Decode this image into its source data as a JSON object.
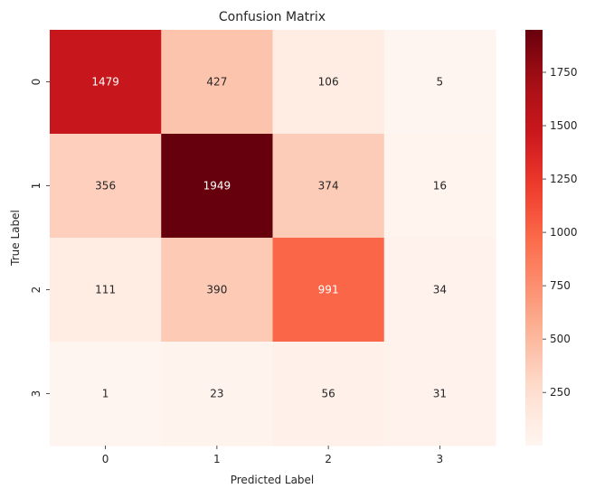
{
  "chart_data": {
    "type": "heatmap",
    "title": "Confusion Matrix",
    "xlabel": "Predicted Label",
    "ylabel": "True Label",
    "x_categories": [
      "0",
      "1",
      "2",
      "3"
    ],
    "y_categories": [
      "0",
      "1",
      "2",
      "3"
    ],
    "values": [
      [
        1479,
        427,
        106,
        5
      ],
      [
        356,
        1949,
        374,
        16
      ],
      [
        111,
        390,
        991,
        34
      ],
      [
        1,
        23,
        56,
        31
      ]
    ],
    "colormap": "Reds",
    "color_range": [
      1,
      1949
    ],
    "colorbar_ticks": [
      250,
      500,
      750,
      1000,
      1250,
      1500,
      1750
    ],
    "colorbar_tick_labels": [
      "250",
      "500",
      "750",
      "1000",
      "1250",
      "1500",
      "1750"
    ],
    "annotation_colors": {
      "dark": "#262626",
      "light": "#ffffff"
    }
  }
}
